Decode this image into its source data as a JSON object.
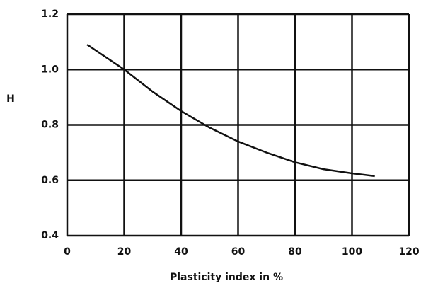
{
  "chart_data": {
    "type": "line",
    "x_label": "Plasticity index in %",
    "y_label": "H",
    "x": [
      7,
      20,
      30,
      40,
      50,
      60,
      70,
      80,
      90,
      100,
      108
    ],
    "series": [
      {
        "color": "#111111",
        "values": [
          1.09,
          1.0,
          0.92,
          0.85,
          0.79,
          0.74,
          0.7,
          0.665,
          0.64,
          0.625,
          0.615
        ]
      }
    ],
    "xlim": [
      0,
      120
    ],
    "xticks": [
      0,
      20,
      40,
      60,
      80,
      100,
      120
    ],
    "ylim": [
      0.4,
      1.2
    ],
    "yticks": [
      {
        "value": 0.4,
        "label": "0.4"
      },
      0.6,
      0.8,
      {
        "value": 1,
        "label": "1.0"
      },
      1.2
    ],
    "grid": true
  }
}
